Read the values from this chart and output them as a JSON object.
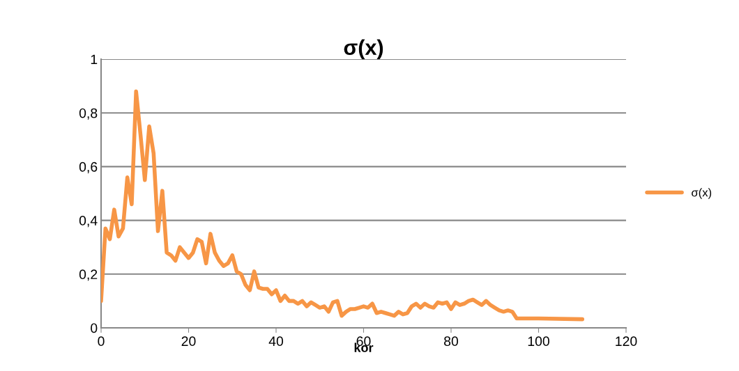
{
  "chart_data": {
    "type": "line",
    "title": "σ(x)",
    "xlabel": "kor",
    "series": [
      {
        "name": "σ(x)",
        "color": "#f79646",
        "x": [
          0,
          1,
          2,
          3,
          4,
          5,
          6,
          7,
          8,
          9,
          10,
          11,
          12,
          13,
          14,
          15,
          16,
          17,
          18,
          19,
          20,
          21,
          22,
          23,
          24,
          25,
          26,
          27,
          28,
          29,
          30,
          31,
          32,
          33,
          34,
          35,
          36,
          37,
          38,
          39,
          40,
          41,
          42,
          43,
          44,
          45,
          46,
          47,
          48,
          49,
          50,
          51,
          52,
          53,
          54,
          55,
          56,
          57,
          58,
          59,
          60,
          61,
          62,
          63,
          64,
          65,
          66,
          67,
          68,
          69,
          70,
          71,
          72,
          73,
          74,
          75,
          76,
          77,
          78,
          79,
          80,
          81,
          82,
          83,
          84,
          85,
          86,
          87,
          88,
          89,
          90,
          91,
          92,
          93,
          94,
          95,
          100,
          110
        ],
        "values": [
          0.1,
          0.37,
          0.33,
          0.44,
          0.34,
          0.37,
          0.56,
          0.46,
          0.88,
          0.72,
          0.55,
          0.75,
          0.65,
          0.36,
          0.51,
          0.28,
          0.27,
          0.25,
          0.3,
          0.28,
          0.26,
          0.28,
          0.33,
          0.32,
          0.24,
          0.35,
          0.28,
          0.25,
          0.23,
          0.24,
          0.27,
          0.21,
          0.2,
          0.16,
          0.14,
          0.21,
          0.15,
          0.145,
          0.145,
          0.125,
          0.14,
          0.1,
          0.12,
          0.1,
          0.1,
          0.09,
          0.1,
          0.08,
          0.095,
          0.085,
          0.075,
          0.08,
          0.06,
          0.095,
          0.1,
          0.045,
          0.06,
          0.07,
          0.07,
          0.075,
          0.08,
          0.075,
          0.09,
          0.055,
          0.06,
          0.055,
          0.05,
          0.045,
          0.06,
          0.05,
          0.055,
          0.08,
          0.09,
          0.075,
          0.09,
          0.08,
          0.075,
          0.095,
          0.09,
          0.095,
          0.07,
          0.095,
          0.085,
          0.09,
          0.1,
          0.105,
          0.095,
          0.085,
          0.1,
          0.085,
          0.075,
          0.065,
          0.06,
          0.065,
          0.06,
          0.035,
          0.035,
          0.032
        ]
      }
    ],
    "xlim": [
      0,
      120
    ],
    "xticks": [
      0,
      20,
      40,
      60,
      80,
      100,
      120
    ],
    "ylim": [
      0,
      1
    ],
    "yticks": [
      0,
      {
        "value": 0.2,
        "label": "0,2"
      },
      {
        "value": 0.4,
        "label": "0,4"
      },
      {
        "value": 0.6,
        "label": "0,6"
      },
      {
        "value": 0.8,
        "label": "0,8"
      },
      1
    ],
    "grid": "y",
    "legend": "right",
    "marker": "none",
    "line_style": "solid"
  }
}
